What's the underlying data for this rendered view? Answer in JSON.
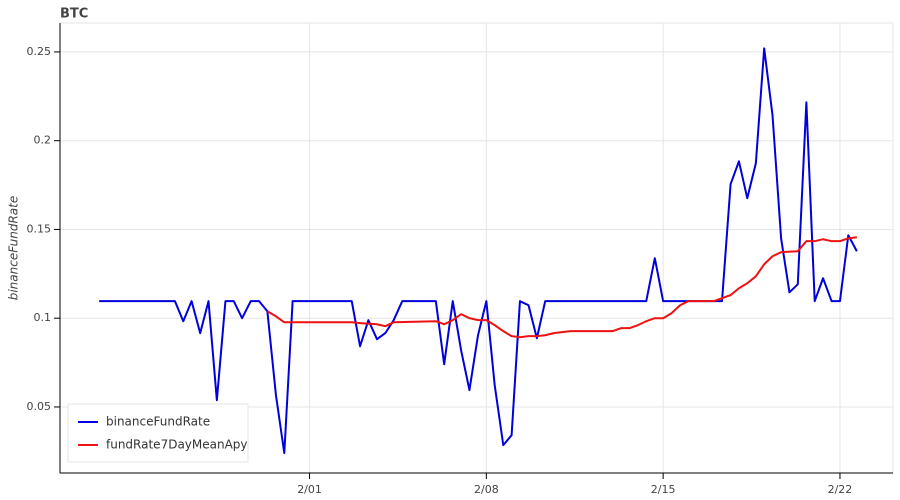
{
  "chart_data": {
    "type": "line",
    "title": "BTC",
    "y_label": "binanceFundRate",
    "xlim": [
      22.12,
      55.1
    ],
    "xticks": [
      {
        "value": 32,
        "label": "2/01"
      },
      {
        "value": 39,
        "label": "2/08"
      },
      {
        "value": 46,
        "label": "2/15"
      },
      {
        "value": 53,
        "label": "2/22"
      }
    ],
    "ylim": [
      0.0128,
      0.2663
    ],
    "yticks": [
      0.05,
      0.1,
      0.15,
      0.2,
      0.25
    ],
    "grid": true,
    "legend": "bottom-left",
    "series": [
      {
        "name": "binanceFundRate",
        "color": "#0000dd",
        "x": [
          23.67,
          26.67,
          27,
          27.33,
          27.67,
          28,
          28.33,
          28.67,
          29,
          29.33,
          29.67,
          30,
          30.33,
          30.67,
          31,
          31.33,
          33.67,
          34,
          34.33,
          34.67,
          35,
          35.33,
          35.67,
          37,
          37.33,
          37.67,
          38,
          38.33,
          38.67,
          39,
          39.33,
          39.67,
          40,
          40.33,
          40.67,
          41,
          41.33,
          45.33,
          45.67,
          46,
          48.33,
          48.67,
          49,
          49.33,
          49.67,
          50,
          50.33,
          50.67,
          51,
          51.33,
          51.67,
          52,
          52.33,
          52.67,
          53,
          53.33,
          53.67
        ],
        "values": [
          0.1096,
          0.1096,
          0.0983,
          0.1096,
          0.0916,
          0.1096,
          0.0538,
          0.1096,
          0.1096,
          0.1,
          0.1096,
          0.1096,
          0.1039,
          0.0566,
          0.024,
          0.1096,
          0.1096,
          0.0842,
          0.0989,
          0.0882,
          0.0916,
          0.0989,
          0.1096,
          0.1096,
          0.0741,
          0.1096,
          0.082,
          0.0595,
          0.0904,
          0.1096,
          0.0623,
          0.0285,
          0.0341,
          0.1096,
          0.1073,
          0.0887,
          0.1096,
          0.1096,
          0.1338,
          0.1096,
          0.1096,
          0.1755,
          0.1884,
          0.1676,
          0.1873,
          0.252,
          0.2143,
          0.145,
          0.1146,
          0.1191,
          0.2216,
          0.1096,
          0.1225,
          0.1096,
          0.1096,
          0.1467,
          0.1377
        ]
      },
      {
        "name": "fundRate7DayMeanApy",
        "color": "#ee1111",
        "x": [
          30.33,
          30.67,
          31,
          31.33,
          33.67,
          34,
          34.67,
          35,
          35.33,
          37,
          37.33,
          37.67,
          38,
          38.33,
          38.67,
          39,
          39.33,
          39.67,
          40,
          40.33,
          40.67,
          41,
          41.33,
          41.67,
          42.33,
          44,
          44.33,
          44.67,
          45,
          45.33,
          45.67,
          46,
          46.33,
          46.67,
          47,
          48,
          48.33,
          48.67,
          49,
          49.33,
          49.67,
          50,
          50.33,
          50.67,
          51.33,
          51.67,
          52,
          52.33,
          52.67,
          53,
          53.33,
          53.67
        ],
        "values": [
          0.1039,
          0.1011,
          0.0977,
          0.0977,
          0.0977,
          0.0972,
          0.0966,
          0.0955,
          0.0977,
          0.0983,
          0.0966,
          0.0989,
          0.1023,
          0.1,
          0.0989,
          0.0989,
          0.0961,
          0.0927,
          0.0899,
          0.0893,
          0.0899,
          0.0899,
          0.0904,
          0.0916,
          0.0927,
          0.0927,
          0.0944,
          0.0944,
          0.0961,
          0.0983,
          0.1,
          0.1,
          0.1028,
          0.1073,
          0.1096,
          0.1096,
          0.1113,
          0.113,
          0.1169,
          0.1197,
          0.1236,
          0.1304,
          0.1349,
          0.1372,
          0.1377,
          0.1434,
          0.1434,
          0.1445,
          0.1434,
          0.1434,
          0.145,
          0.1456
        ]
      }
    ]
  }
}
